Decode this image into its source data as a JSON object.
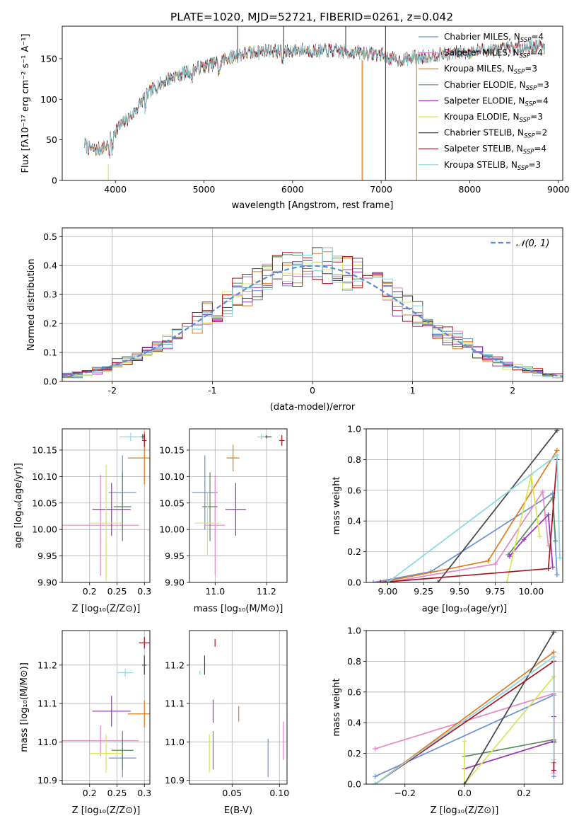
{
  "title": "PLATE=1020, MJD=52721, FIBERID=0261, z=0.042",
  "colors": {
    "chabrier_miles": "#6a8fdc",
    "salpeter_miles": "#e488c8",
    "kroupa_miles": "#e07b1e",
    "chabrier_elodie": "#5b8a5e",
    "salpeter_elodie": "#9b2fb9",
    "kroupa_elodie": "#d8e45a",
    "chabrier_stelib": "#444444",
    "salpeter_stelib": "#a81420",
    "kroupa_stelib": "#8ad8e0",
    "gaussian": "#5a8ad8"
  },
  "chart_data": [
    {
      "id": "spectrum",
      "type": "line",
      "xlabel": "wavelength [Angstrom, rest frame]",
      "ylabel": "Flux [fλ10⁻¹⁷ erg cm⁻² s⁻¹ A⁻¹]",
      "xlim": [
        3400,
        9050
      ],
      "ylim": [
        0,
        190
      ],
      "xticks": [
        4000,
        5000,
        6000,
        7000,
        8000,
        9000
      ],
      "yticks": [
        0,
        50,
        100,
        150
      ],
      "grid": false,
      "legend_placement": "upper-right",
      "continuum": {
        "x": [
          3650,
          3700,
          3800,
          3900,
          4000,
          4100,
          4200,
          4300,
          4400,
          4500,
          4600,
          4700,
          4800,
          4900,
          5000,
          5100,
          5200,
          5300,
          5400,
          5500,
          5600,
          5700,
          5800,
          5900,
          6000,
          6100,
          6200,
          6300,
          6400,
          6500,
          6600,
          6700,
          6800,
          6900,
          7000,
          7100,
          7200,
          7300,
          7400,
          7500,
          7600,
          7700,
          7800,
          7900,
          8000,
          8100,
          8200,
          8300,
          8400,
          8500,
          8600,
          8700,
          8800,
          8850
        ],
        "y": [
          45,
          40,
          38,
          42,
          62,
          72,
          82,
          98,
          110,
          118,
          125,
          130,
          133,
          137,
          140,
          143,
          148,
          152,
          155,
          157,
          158,
          160,
          160,
          158,
          160,
          161,
          160,
          159,
          160,
          160,
          158,
          158,
          157,
          156,
          155,
          150,
          148,
          150,
          152,
          152,
          155,
          156,
          156,
          158,
          158,
          160,
          161,
          160,
          162,
          163,
          164,
          165,
          166,
          164
        ]
      },
      "series": [
        {
          "name": "Chabrier MILES, Nₛₛₚ=4",
          "label": "Chabrier MILES",
          "nssp": 4,
          "color_key": "chabrier_miles"
        },
        {
          "name": "Salpeter MILES, Nₛₛₚ=4",
          "label": "Salpeter MILES",
          "nssp": 4,
          "color_key": "salpeter_miles"
        },
        {
          "name": "Kroupa MILES, Nₛₛₚ=3",
          "label": "Kroupa MILES",
          "nssp": 3,
          "color_key": "kroupa_miles"
        },
        {
          "name": "Chabrier ELODIE, Nₛₛₚ=3",
          "label": "Chabrier ELODIE",
          "nssp": 3,
          "color_key": "chabrier_elodie"
        },
        {
          "name": "Salpeter ELODIE, Nₛₛₚ=4",
          "label": "Salpeter ELODIE",
          "nssp": 4,
          "color_key": "salpeter_elodie"
        },
        {
          "name": "Kroupa ELODIE, Nₛₛₚ=3",
          "label": "Kroupa ELODIE",
          "nssp": 3,
          "color_key": "kroupa_elodie"
        },
        {
          "name": "Chabrier STELIB, Nₛₛₚ=2",
          "label": "Chabrier STELIB",
          "nssp": 2,
          "color_key": "chabrier_stelib"
        },
        {
          "name": "Salpeter STELIB, Nₛₛₚ=4",
          "label": "Salpeter STELIB",
          "nssp": 4,
          "color_key": "salpeter_stelib"
        },
        {
          "name": "Kroupa STELIB, Nₛₛₚ=3",
          "label": "Kroupa STELIB",
          "nssp": 3,
          "color_key": "kroupa_stelib"
        }
      ],
      "spikes": [
        {
          "x": 3920,
          "y0": 0,
          "y1": 20,
          "color_key": "kroupa_elodie"
        },
        {
          "x": 6780,
          "y0": 0,
          "y1": 150,
          "color_key": "kroupa_elodie"
        },
        {
          "x": 6790,
          "y0": 0,
          "y1": 148,
          "color_key": "kroupa_miles"
        },
        {
          "x": 7050,
          "y0": 0,
          "y1": 190,
          "color_key": "chabrier_stelib"
        },
        {
          "x": 7400,
          "y0": 0,
          "y1": 150,
          "color_key": "kroupa_miles"
        },
        {
          "x": 5380,
          "y0": 150,
          "y1": 190,
          "color_key": "chabrier_stelib"
        },
        {
          "x": 5900,
          "y0": 150,
          "y1": 190,
          "color_key": "chabrier_stelib"
        },
        {
          "x": 6600,
          "y0": 155,
          "y1": 190,
          "color_key": "chabrier_stelib"
        }
      ]
    },
    {
      "id": "residuals",
      "type": "line",
      "xlabel": "(data-model)/error",
      "ylabel": "Normed distribution",
      "xlim": [
        -2.5,
        2.5
      ],
      "ylim": [
        0,
        0.53
      ],
      "xticks": [
        -2,
        -1,
        0,
        1,
        2
      ],
      "yticks": [
        0.0,
        0.1,
        0.2,
        0.3,
        0.4,
        0.5
      ],
      "grid": true,
      "legend_placement": "upper-right",
      "legend": [
        "𝒩(0, 1)"
      ],
      "bin_width": 0.1,
      "note": "step histograms, one per model, plus a dashed normal curve"
    },
    {
      "id": "age_vs_Z",
      "type": "scatter",
      "xlabel": "Z [log₁₀(Z/Z⊙)]",
      "ylabel": "age  [log₁₀(age/yr)]",
      "xlim": [
        0.15,
        0.31
      ],
      "ylim": [
        9.9,
        10.19
      ],
      "xticks": [
        0.2,
        0.25,
        0.3
      ],
      "xticklabels": [
        "0.2",
        "0.25",
        "0.3"
      ],
      "yticks": [
        9.9,
        9.95,
        10.0,
        10.05,
        10.1,
        10.15
      ],
      "grid": true,
      "points": [
        {
          "color_key": "chabrier_miles",
          "x": 0.26,
          "xerr": 0.025,
          "y": 10.07,
          "yerr": 0.07
        },
        {
          "color_key": "salpeter_miles",
          "x": 0.22,
          "xerr": 0.07,
          "y": 10.008,
          "yerr": 0.095
        },
        {
          "color_key": "kroupa_miles",
          "x": 0.3,
          "xerr": 0.03,
          "y": 10.135,
          "yerr": 0.05
        },
        {
          "color_key": "chabrier_elodie",
          "x": 0.26,
          "xerr": 0.016,
          "y": 10.043,
          "yerr": 0.065
        },
        {
          "color_key": "salpeter_elodie",
          "x": 0.24,
          "xerr": 0.035,
          "y": 10.038,
          "yerr": 0.05
        },
        {
          "color_key": "kroupa_elodie",
          "x": 0.23,
          "xerr": 0.03,
          "y": 10.012,
          "yerr": 0.11
        },
        {
          "color_key": "chabrier_stelib",
          "x": 0.297,
          "xerr": 0.004,
          "y": 10.175,
          "yerr": 0.005
        },
        {
          "color_key": "salpeter_stelib",
          "x": 0.3,
          "xerr": 0.004,
          "y": 10.168,
          "yerr": 0.012
        },
        {
          "color_key": "kroupa_stelib",
          "x": 0.275,
          "xerr": 0.02,
          "y": 10.175,
          "yerr": 0.008
        }
      ]
    },
    {
      "id": "age_vs_mass",
      "type": "scatter",
      "xlabel": "mass [log₁₀(M/M⊙)]",
      "ylabel": "",
      "xlim": [
        10.9,
        11.28
      ],
      "ylim": [
        9.9,
        10.19
      ],
      "xticks": [
        11.0,
        11.2
      ],
      "xticklabels": [
        "11.0",
        "11.2"
      ],
      "yticks": [
        9.9,
        9.95,
        10.0,
        10.05,
        10.1,
        10.15
      ],
      "grid": true,
      "points": [
        {
          "color_key": "chabrier_miles",
          "x": 10.96,
          "xerr": 0.05,
          "y": 10.07,
          "yerr": 0.07
        },
        {
          "color_key": "salpeter_miles",
          "x": 11.0,
          "xerr": 0.04,
          "y": 10.008,
          "yerr": 0.095
        },
        {
          "color_key": "kroupa_miles",
          "x": 11.07,
          "xerr": 0.025,
          "y": 10.135,
          "yerr": 0.025
        },
        {
          "color_key": "chabrier_elodie",
          "x": 10.98,
          "xerr": 0.03,
          "y": 10.043,
          "yerr": 0.065
        },
        {
          "color_key": "salpeter_elodie",
          "x": 11.08,
          "xerr": 0.04,
          "y": 10.038,
          "yerr": 0.05
        },
        {
          "color_key": "kroupa_elodie",
          "x": 10.97,
          "xerr": 0.05,
          "y": 10.012,
          "yerr": 0.06
        },
        {
          "color_key": "chabrier_stelib",
          "x": 11.2,
          "xerr": 0.02,
          "y": 10.175,
          "yerr": 0.003
        },
        {
          "color_key": "salpeter_stelib",
          "x": 11.26,
          "xerr": 0.01,
          "y": 10.168,
          "yerr": 0.01
        },
        {
          "color_key": "kroupa_stelib",
          "x": 11.18,
          "xerr": 0.015,
          "y": 10.175,
          "yerr": 0.005
        }
      ]
    },
    {
      "id": "mass_weight_vs_age",
      "type": "line",
      "xlabel": "age  [log₁₀(age/yr)]",
      "ylabel": "mass weight",
      "xlim": [
        8.85,
        10.22
      ],
      "ylim": [
        0,
        1.0
      ],
      "xticks": [
        9.0,
        9.25,
        9.5,
        9.75,
        10.0
      ],
      "xticklabels": [
        "9.00",
        "9.25",
        "9.50",
        "9.75",
        "10.00"
      ],
      "yticks": [
        0.0,
        0.2,
        0.4,
        0.6,
        0.8,
        1.0
      ],
      "grid": true,
      "series": [
        {
          "color_key": "chabrier_miles",
          "x": [
            8.9,
            9.3,
            10.15,
            10.18
          ],
          "y": [
            0.0,
            0.07,
            0.58,
            0.05
          ]
        },
        {
          "color_key": "salpeter_miles",
          "x": [
            9.0,
            9.75,
            10.08,
            10.12
          ],
          "y": [
            0.0,
            0.12,
            0.59,
            0.24
          ]
        },
        {
          "color_key": "kroupa_miles",
          "x": [
            8.95,
            9.7,
            10.18
          ],
          "y": [
            0.0,
            0.14,
            0.86
          ]
        },
        {
          "color_key": "chabrier_elodie",
          "x": [
            9.84,
            10.15,
            10.17
          ],
          "y": [
            0.18,
            0.55,
            0.27
          ]
        },
        {
          "color_key": "salpeter_elodie",
          "x": [
            9.85,
            9.95,
            10.12,
            10.15
          ],
          "y": [
            0.17,
            0.28,
            0.44,
            0.1
          ]
        },
        {
          "color_key": "kroupa_elodie",
          "x": [
            9.83,
            10.0,
            10.06
          ],
          "y": [
            0.0,
            0.7,
            0.3
          ]
        },
        {
          "color_key": "chabrier_stelib",
          "x": [
            9.35,
            10.18
          ],
          "y": [
            0.0,
            0.99
          ]
        },
        {
          "color_key": "salpeter_stelib",
          "x": [
            8.95,
            10.12,
            10.18
          ],
          "y": [
            0.0,
            0.09,
            0.8
          ]
        },
        {
          "color_key": "kroupa_stelib",
          "x": [
            9.0,
            10.18,
            10.2
          ],
          "y": [
            0.0,
            0.83,
            0.16
          ]
        }
      ]
    },
    {
      "id": "mass_vs_Z",
      "type": "scatter",
      "xlabel": "Z [log₁₀(Z/Z⊙)]",
      "ylabel": "mass [log₁₀(M/M⊙)]",
      "xlim": [
        0.15,
        0.31
      ],
      "ylim": [
        10.89,
        11.29
      ],
      "xticks": [
        0.2,
        0.25,
        0.3
      ],
      "xticklabels": [
        "0.2",
        "0.25",
        "0.3"
      ],
      "yticks": [
        10.9,
        11.0,
        11.1,
        11.2
      ],
      "grid": true,
      "points": [
        {
          "color_key": "chabrier_miles",
          "x": 0.26,
          "xerr": 0.025,
          "y": 10.958,
          "yerr": 0.05
        },
        {
          "color_key": "salpeter_miles",
          "x": 0.22,
          "xerr": 0.07,
          "y": 11.003,
          "yerr": 0.04
        },
        {
          "color_key": "kroupa_miles",
          "x": 0.3,
          "xerr": 0.03,
          "y": 11.073,
          "yerr": 0.035
        },
        {
          "color_key": "chabrier_elodie",
          "x": 0.26,
          "xerr": 0.02,
          "y": 10.978,
          "yerr": 0.05
        },
        {
          "color_key": "salpeter_elodie",
          "x": 0.24,
          "xerr": 0.035,
          "y": 11.08,
          "yerr": 0.04
        },
        {
          "color_key": "kroupa_elodie",
          "x": 0.23,
          "xerr": 0.03,
          "y": 10.97,
          "yerr": 0.05
        },
        {
          "color_key": "chabrier_stelib",
          "x": 0.3,
          "xerr": 0.004,
          "y": 11.2,
          "yerr": 0.025
        },
        {
          "color_key": "salpeter_stelib",
          "x": 0.3,
          "xerr": 0.01,
          "y": 11.258,
          "yerr": 0.015
        },
        {
          "color_key": "kroupa_stelib",
          "x": 0.265,
          "xerr": 0.015,
          "y": 11.18,
          "yerr": 0.01
        }
      ]
    },
    {
      "id": "mass_vs_ebv",
      "type": "scatter",
      "xlabel": "E(B-V)",
      "ylabel": "",
      "xlim": [
        0.005,
        0.108
      ],
      "ylim": [
        10.89,
        11.29
      ],
      "xticks": [
        0.05,
        0.1
      ],
      "xticklabels": [
        "0.05",
        "0.10"
      ],
      "yticks": [
        10.9,
        11.0,
        11.1,
        11.2
      ],
      "grid": true,
      "points": [
        {
          "color_key": "chabrier_miles",
          "x": 0.088,
          "xerr": 0,
          "y": 10.958,
          "yerr": 0.05
        },
        {
          "color_key": "salpeter_miles",
          "x": 0.104,
          "xerr": 0,
          "y": 11.003,
          "yerr": 0.05
        },
        {
          "color_key": "kroupa_miles",
          "x": 0.057,
          "xerr": 0,
          "y": 11.073,
          "yerr": 0.02
        },
        {
          "color_key": "chabrier_elodie",
          "x": 0.03,
          "xerr": 0,
          "y": 10.978,
          "yerr": 0.05
        },
        {
          "color_key": "salpeter_elodie",
          "x": 0.03,
          "xerr": 0,
          "y": 11.08,
          "yerr": 0.03
        },
        {
          "color_key": "kroupa_elodie",
          "x": 0.026,
          "xerr": 0,
          "y": 10.97,
          "yerr": 0.05
        },
        {
          "color_key": "chabrier_stelib",
          "x": 0.021,
          "xerr": 0,
          "y": 11.2,
          "yerr": 0.025
        },
        {
          "color_key": "salpeter_stelib",
          "x": 0.032,
          "xerr": 0,
          "y": 11.258,
          "yerr": 0.01
        },
        {
          "color_key": "kroupa_stelib",
          "x": 0.016,
          "xerr": 0,
          "y": 11.18,
          "yerr": 0.005
        }
      ]
    },
    {
      "id": "mass_weight_vs_Z",
      "type": "line",
      "xlabel": "Z [log₁₀(Z/Z⊙)]",
      "ylabel": "mass weight",
      "xlim": [
        -0.33,
        0.33
      ],
      "ylim": [
        0,
        1.0
      ],
      "xticks": [
        -0.2,
        0.0,
        0.2
      ],
      "xticklabels": [
        "−0.2",
        "0.0",
        "0.2"
      ],
      "yticks": [
        0.0,
        0.2,
        0.4,
        0.6,
        0.8,
        1.0
      ],
      "grid": true,
      "series": [
        {
          "color_key": "chabrier_miles",
          "x": [
            -0.3,
            0.3,
            0.3
          ],
          "y": [
            0.05,
            0.58,
            0.05
          ]
        },
        {
          "color_key": "salpeter_miles",
          "x": [
            -0.3,
            0.3,
            0.3
          ],
          "y": [
            0.23,
            0.59,
            0.07
          ]
        },
        {
          "color_key": "kroupa_miles",
          "x": [
            -0.3,
            0.3,
            0.3
          ],
          "y": [
            0.0,
            0.86,
            0.14
          ]
        },
        {
          "color_key": "chabrier_elodie",
          "x": [
            0.0,
            0.3,
            0.3
          ],
          "y": [
            0.18,
            0.29,
            0.27
          ]
        },
        {
          "color_key": "salpeter_elodie",
          "x": [
            0.0,
            0.3,
            0.3
          ],
          "y": [
            0.1,
            0.28,
            0.44
          ]
        },
        {
          "color_key": "kroupa_elodie",
          "x": [
            0.0,
            0.0,
            0.3
          ],
          "y": [
            0.28,
            0.0,
            0.7
          ]
        },
        {
          "color_key": "chabrier_stelib",
          "x": [
            0.0,
            0.3
          ],
          "y": [
            0.0,
            0.99
          ]
        },
        {
          "color_key": "salpeter_stelib",
          "x": [
            -0.3,
            0.3,
            0.3
          ],
          "y": [
            0.0,
            0.8,
            0.09
          ]
        },
        {
          "color_key": "kroupa_stelib",
          "x": [
            -0.3,
            0.3,
            0.3
          ],
          "y": [
            0.0,
            0.83,
            0.16
          ]
        }
      ]
    }
  ]
}
